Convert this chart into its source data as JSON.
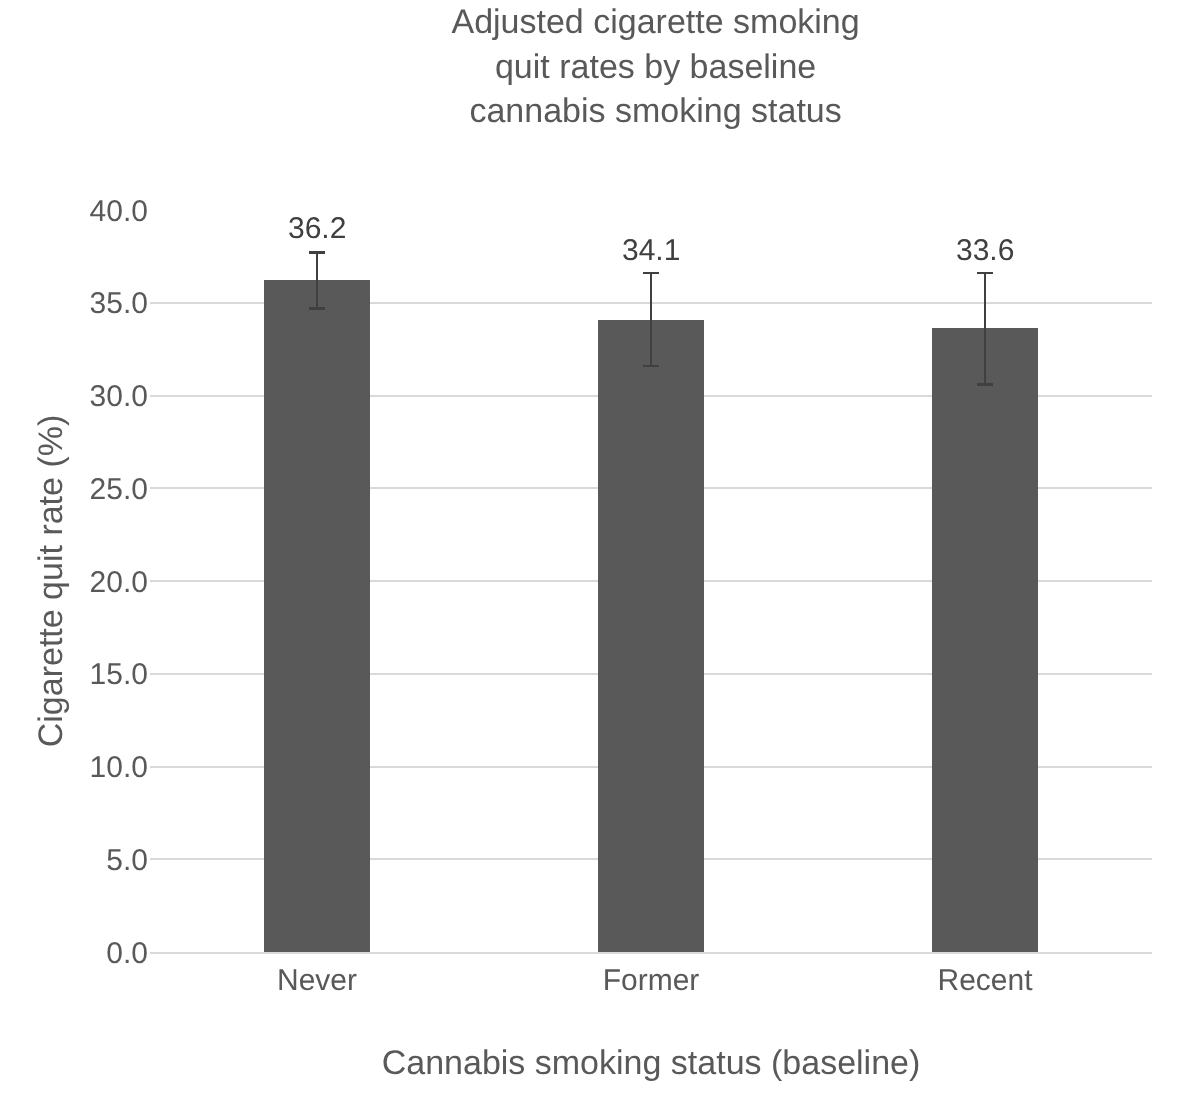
{
  "chart_data": {
    "type": "bar",
    "title": "Adjusted cigarette smoking quit rates by baseline cannabis smoking status",
    "xlabel": "Cannabis smoking status (baseline)",
    "ylabel": "Cigarette quit rate (%)",
    "categories": [
      "Never",
      "Former",
      "Recent"
    ],
    "values": [
      36.2,
      34.1,
      33.6
    ],
    "errors": [
      1.5,
      2.5,
      3.0
    ],
    "color": "#595959",
    "ylim": [
      0,
      40
    ],
    "yticks": [
      {
        "value": 0,
        "label": "0.0"
      },
      {
        "value": 5,
        "label": "5.0"
      },
      {
        "value": 10,
        "label": "10.0"
      },
      {
        "value": 15,
        "label": "15.0"
      },
      {
        "value": 20,
        "label": "20.0"
      },
      {
        "value": 25,
        "label": "25.0"
      },
      {
        "value": 30,
        "label": "30.0"
      },
      {
        "value": 35,
        "label": "35.0"
      },
      {
        "value": 40,
        "label": "40.0"
      }
    ],
    "grid": "y",
    "data_labels": true,
    "legend": false
  }
}
